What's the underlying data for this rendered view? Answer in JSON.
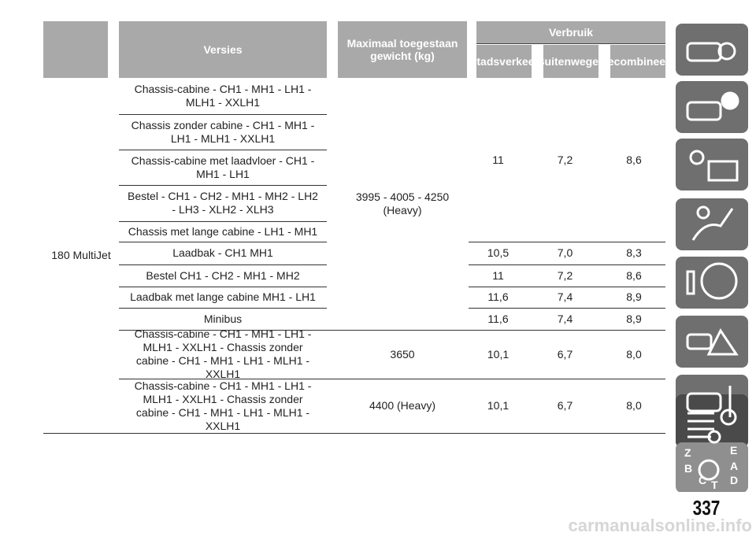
{
  "header": {
    "versies": "Versies",
    "max_gewicht": "Maximaal toegestaan gewicht (kg)",
    "verbruik": "Verbruik",
    "stadsverkeer": "Stadsverkeer",
    "buitenwegen": "Buitenwegen",
    "gecombineerd": "Gecombineerd"
  },
  "table": {
    "engine": "180 MultiJet",
    "groups": [
      {
        "weight": "3995 - 4005 - 4250 (Heavy)",
        "items": [
          {
            "versions": [
              "Chassis-cabine - CH1 - MH1 - LH1 - MLH1 - XXLH1",
              "Chassis zonder cabine - CH1 - MH1 - LH1 - MLH1 - XXLH1",
              "Chassis-cabine met laadvloer - CH1 - MH1 - LH1",
              "Bestel - CH1 - CH2 - MH1 - MH2 - LH2 - LH3 - XLH2 - XLH3",
              "Chassis met lange cabine - LH1 - MH1"
            ],
            "consumption": [
              "11",
              "7,2",
              "8,6"
            ]
          },
          {
            "versions": [
              "Laadbak - CH1 MH1"
            ],
            "consumption": [
              "10,5",
              "7,0",
              "8,3"
            ]
          },
          {
            "versions": [
              "Bestel CH1 - CH2 - MH1 - MH2"
            ],
            "consumption": [
              "11",
              "7,2",
              "8,6"
            ]
          },
          {
            "versions": [
              "Laadbak met lange cabine MH1 - LH1"
            ],
            "consumption": [
              "11,6",
              "7,4",
              "8,9"
            ]
          },
          {
            "versions": [
              "Minibus"
            ],
            "consumption": [
              "11,6",
              "7,4",
              "8,9"
            ]
          }
        ]
      },
      {
        "weight": "3650",
        "items": [
          {
            "versions": [
              "Chassis-cabine - CH1 - MH1 - LH1 - MLH1 - XXLH1 - Chassis zonder cabine - CH1 - MH1 - LH1 - MLH1 - XXLH1"
            ],
            "consumption": [
              "10,1",
              "6,7",
              "8,0"
            ]
          }
        ]
      },
      {
        "weight": "4400 (Heavy)",
        "items": [
          {
            "versions": [
              "Chassis-cabine - CH1 - MH1 - LH1 - MLH1 - XXLH1 - Chassis zonder cabine - CH1 - MH1 - LH1 - MLH1 - XXLH1"
            ],
            "consumption": [
              "10,1",
              "6,7",
              "8,0"
            ]
          }
        ]
      }
    ]
  },
  "page_number": "337",
  "watermark": "carmanualsonline.info"
}
